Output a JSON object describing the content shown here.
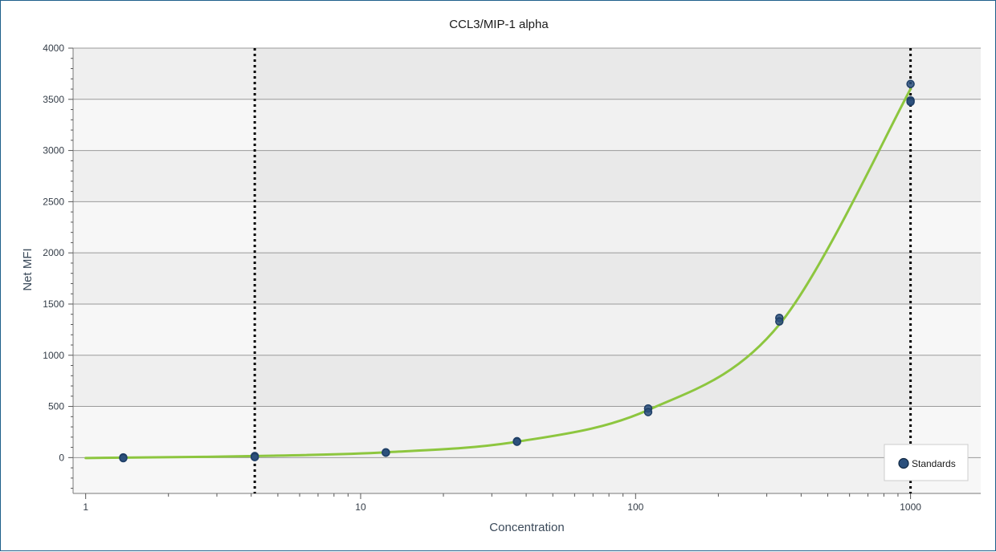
{
  "chart_data": {
    "type": "scatter",
    "title": "CCL3/MIP-1 alpha",
    "xlabel": "Concentration",
    "ylabel": "Net MFI",
    "x_scale": "log",
    "xlim": [
      0.9,
      1800
    ],
    "ylim": [
      -350,
      4000
    ],
    "x_ticks": [
      1,
      10,
      100,
      1000
    ],
    "x_tick_labels": [
      "1",
      "10",
      "100",
      "1000"
    ],
    "y_ticks": [
      0,
      500,
      1000,
      1500,
      2000,
      2500,
      3000,
      3500,
      4000
    ],
    "y_tick_labels": [
      "0",
      "500",
      "1000",
      "1500",
      "2000",
      "2500",
      "3000",
      "3500",
      "4000"
    ],
    "grid": true,
    "legend": {
      "position": "bottom-right"
    },
    "vertical_lines": [
      4.12,
      1000
    ],
    "series": [
      {
        "name": "Standards",
        "type": "scatter",
        "color": "#1f3f66",
        "points": [
          {
            "x": 1.37,
            "y": 2
          },
          {
            "x": 1.37,
            "y": -5
          },
          {
            "x": 4.12,
            "y": 15
          },
          {
            "x": 4.12,
            "y": 5
          },
          {
            "x": 12.35,
            "y": 52
          },
          {
            "x": 12.35,
            "y": 48
          },
          {
            "x": 37.04,
            "y": 160
          },
          {
            "x": 37.04,
            "y": 155
          },
          {
            "x": 111.1,
            "y": 480
          },
          {
            "x": 111.1,
            "y": 445
          },
          {
            "x": 333.3,
            "y": 1365
          },
          {
            "x": 333.3,
            "y": 1330
          },
          {
            "x": 1000,
            "y": 3650
          },
          {
            "x": 1000,
            "y": 3490
          },
          {
            "x": 1000,
            "y": 3475
          }
        ]
      },
      {
        "type": "line",
        "color": "#8dc63f",
        "points": [
          {
            "x": 1.0,
            "y": -4
          },
          {
            "x": 1.37,
            "y": 0
          },
          {
            "x": 4.12,
            "y": 15
          },
          {
            "x": 12.35,
            "y": 52
          },
          {
            "x": 37.04,
            "y": 155
          },
          {
            "x": 111.1,
            "y": 465
          },
          {
            "x": 333.3,
            "y": 1300
          },
          {
            "x": 1000,
            "y": 3600
          }
        ]
      }
    ]
  }
}
